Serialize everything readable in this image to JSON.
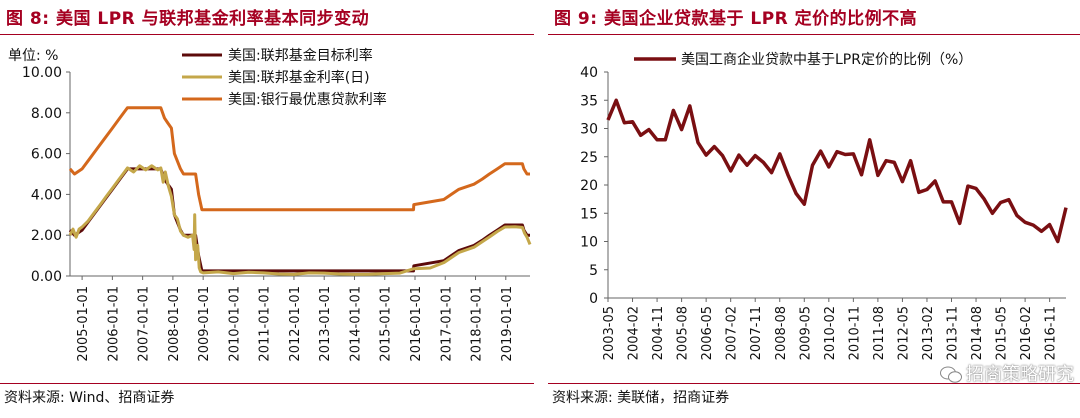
{
  "left": {
    "title": "图 8:  美国 LPR 与联邦基金利率基本同步变动",
    "source": "资料来源:  Wind、招商证券",
    "chart_data": {
      "type": "line",
      "unit_label": "单位:  %",
      "ylim": [
        0,
        10
      ],
      "y_ticks": [
        "0.00",
        "2.00",
        "4.00",
        "6.00",
        "8.00",
        "10.00"
      ],
      "x_ticks": [
        "2005-01-01",
        "2006-01-01",
        "2007-01-01",
        "2008-01-01",
        "2009-01-01",
        "2010-01-01",
        "2011-01-01",
        "2012-01-01",
        "2013-01-01",
        "2014-01-01",
        "2015-01-01",
        "2016-01-01",
        "2017-01-01",
        "2018-01-01",
        "2019-01-01"
      ],
      "x_range": [
        2004.6,
        2019.8
      ],
      "legend_position": "top-right",
      "series": [
        {
          "name": "美国:联邦基金目标利率",
          "color": "#5c0a0a",
          "points": [
            [
              2004.6,
              2.25
            ],
            [
              2004.75,
              2.0
            ],
            [
              2005.0,
              2.25
            ],
            [
              2005.25,
              2.75
            ],
            [
              2005.5,
              3.25
            ],
            [
              2005.75,
              3.75
            ],
            [
              2006.0,
              4.25
            ],
            [
              2006.25,
              4.75
            ],
            [
              2006.5,
              5.25
            ],
            [
              2007.0,
              5.25
            ],
            [
              2007.6,
              5.25
            ],
            [
              2007.72,
              4.75
            ],
            [
              2007.83,
              4.5
            ],
            [
              2007.95,
              4.25
            ],
            [
              2008.05,
              3.0
            ],
            [
              2008.25,
              2.25
            ],
            [
              2008.35,
              2.0
            ],
            [
              2008.75,
              2.0
            ],
            [
              2008.8,
              1.5
            ],
            [
              2008.85,
              1.0
            ],
            [
              2008.96,
              0.25
            ],
            [
              2015.95,
              0.25
            ],
            [
              2015.96,
              0.5
            ],
            [
              2016.95,
              0.75
            ],
            [
              2017.2,
              1.0
            ],
            [
              2017.45,
              1.25
            ],
            [
              2017.95,
              1.5
            ],
            [
              2018.22,
              1.75
            ],
            [
              2018.46,
              2.0
            ],
            [
              2018.72,
              2.25
            ],
            [
              2018.97,
              2.5
            ],
            [
              2019.55,
              2.5
            ],
            [
              2019.6,
              2.25
            ],
            [
              2019.7,
              2.0
            ],
            [
              2019.8,
              2.0
            ]
          ]
        },
        {
          "name": "美国:联邦基金利率(日)",
          "color": "#c4a74a",
          "points": [
            [
              2004.6,
              2.0
            ],
            [
              2004.7,
              2.3
            ],
            [
              2004.8,
              1.9
            ],
            [
              2004.9,
              2.3
            ],
            [
              2005.0,
              2.4
            ],
            [
              2005.2,
              2.7
            ],
            [
              2005.4,
              3.1
            ],
            [
              2005.6,
              3.5
            ],
            [
              2005.8,
              3.9
            ],
            [
              2006.0,
              4.3
            ],
            [
              2006.2,
              4.7
            ],
            [
              2006.4,
              5.1
            ],
            [
              2006.5,
              5.3
            ],
            [
              2006.7,
              5.1
            ],
            [
              2006.9,
              5.4
            ],
            [
              2007.1,
              5.2
            ],
            [
              2007.3,
              5.4
            ],
            [
              2007.5,
              5.2
            ],
            [
              2007.6,
              5.3
            ],
            [
              2007.68,
              4.6
            ],
            [
              2007.75,
              5.1
            ],
            [
              2007.85,
              4.4
            ],
            [
              2007.95,
              3.9
            ],
            [
              2008.05,
              3.0
            ],
            [
              2008.15,
              2.8
            ],
            [
              2008.25,
              2.2
            ],
            [
              2008.35,
              2.0
            ],
            [
              2008.5,
              1.9
            ],
            [
              2008.65,
              2.0
            ],
            [
              2008.7,
              1.3
            ],
            [
              2008.72,
              3.0
            ],
            [
              2008.75,
              0.8
            ],
            [
              2008.82,
              1.5
            ],
            [
              2008.87,
              0.4
            ],
            [
              2008.92,
              0.2
            ],
            [
              2009.0,
              0.15
            ],
            [
              2009.5,
              0.2
            ],
            [
              2010.0,
              0.12
            ],
            [
              2010.5,
              0.18
            ],
            [
              2011.0,
              0.15
            ],
            [
              2011.5,
              0.1
            ],
            [
              2012.0,
              0.08
            ],
            [
              2012.5,
              0.15
            ],
            [
              2013.0,
              0.14
            ],
            [
              2013.5,
              0.1
            ],
            [
              2014.0,
              0.08
            ],
            [
              2014.5,
              0.09
            ],
            [
              2015.0,
              0.12
            ],
            [
              2015.5,
              0.14
            ],
            [
              2015.96,
              0.36
            ],
            [
              2016.5,
              0.39
            ],
            [
              2016.96,
              0.66
            ],
            [
              2017.2,
              0.9
            ],
            [
              2017.45,
              1.15
            ],
            [
              2017.95,
              1.41
            ],
            [
              2018.22,
              1.68
            ],
            [
              2018.46,
              1.91
            ],
            [
              2018.72,
              2.18
            ],
            [
              2018.97,
              2.4
            ],
            [
              2019.3,
              2.41
            ],
            [
              2019.55,
              2.38
            ],
            [
              2019.62,
              2.1
            ],
            [
              2019.7,
              1.9
            ],
            [
              2019.8,
              1.55
            ]
          ]
        },
        {
          "name": "美国:银行最优惠贷款利率",
          "color": "#d4681c",
          "points": [
            [
              2004.6,
              5.25
            ],
            [
              2004.75,
              5.0
            ],
            [
              2005.0,
              5.25
            ],
            [
              2005.25,
              5.75
            ],
            [
              2005.5,
              6.25
            ],
            [
              2005.75,
              6.75
            ],
            [
              2006.0,
              7.25
            ],
            [
              2006.25,
              7.75
            ],
            [
              2006.5,
              8.25
            ],
            [
              2007.0,
              8.25
            ],
            [
              2007.6,
              8.25
            ],
            [
              2007.72,
              7.75
            ],
            [
              2007.83,
              7.5
            ],
            [
              2007.95,
              7.25
            ],
            [
              2008.05,
              6.0
            ],
            [
              2008.25,
              5.25
            ],
            [
              2008.35,
              5.0
            ],
            [
              2008.75,
              5.0
            ],
            [
              2008.8,
              4.5
            ],
            [
              2008.85,
              4.0
            ],
            [
              2008.96,
              3.25
            ],
            [
              2015.95,
              3.25
            ],
            [
              2015.96,
              3.5
            ],
            [
              2016.95,
              3.75
            ],
            [
              2017.2,
              4.0
            ],
            [
              2017.45,
              4.25
            ],
            [
              2017.95,
              4.5
            ],
            [
              2018.22,
              4.75
            ],
            [
              2018.46,
              5.0
            ],
            [
              2018.72,
              5.25
            ],
            [
              2018.97,
              5.5
            ],
            [
              2019.55,
              5.5
            ],
            [
              2019.6,
              5.25
            ],
            [
              2019.7,
              5.0
            ],
            [
              2019.8,
              5.0
            ]
          ]
        }
      ]
    }
  },
  "right": {
    "title": "图 9:  美国企业贷款基于 LPR 定价的比例不高",
    "source": "资料来源:  美联储，招商证券",
    "watermark": "招商策略研究",
    "chart_data": {
      "type": "line",
      "ylim": [
        0,
        40
      ],
      "y_ticks": [
        "0",
        "5",
        "10",
        "15",
        "20",
        "25",
        "30",
        "35",
        "40"
      ],
      "x_tick_labels": [
        "2003-05",
        "2004-02",
        "2004-11",
        "2005-08",
        "2006-05",
        "2007-02",
        "2007-11",
        "2008-08",
        "2009-05",
        "2010-02",
        "2010-11",
        "2011-08",
        "2012-05",
        "2013-02",
        "2013-11",
        "2014-08",
        "2015-05",
        "2016-02",
        "2016-11"
      ],
      "legend_position": "top-left",
      "series": [
        {
          "name": "美国工商企业贷款中基于LPR定价的比例（%）",
          "color": "#7a0f12",
          "values": [
            31.5,
            35.0,
            31.0,
            31.2,
            28.8,
            29.8,
            28.0,
            28.0,
            33.2,
            29.8,
            34.0,
            27.5,
            25.3,
            26.8,
            25.2,
            22.5,
            25.3,
            23.5,
            25.2,
            24.0,
            22.2,
            25.5,
            21.8,
            18.5,
            16.6,
            23.5,
            26.0,
            23.2,
            25.9,
            25.4,
            25.5,
            21.8,
            28.0,
            21.7,
            24.3,
            24.0,
            20.6,
            24.3,
            18.7,
            19.2,
            20.7,
            17.0,
            17.0,
            13.2,
            19.8,
            19.4,
            17.5,
            15.0,
            16.9,
            17.4,
            14.6,
            13.4,
            12.9,
            11.8,
            13.0,
            10.0,
            16.0
          ]
        }
      ]
    }
  }
}
